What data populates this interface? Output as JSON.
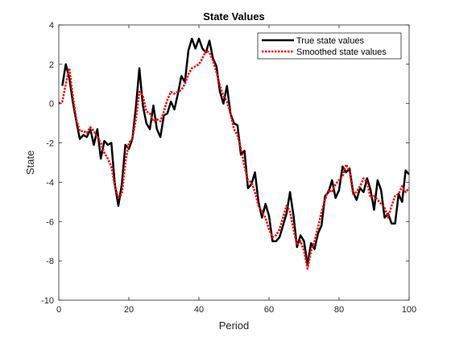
{
  "chart_data": {
    "type": "line",
    "title": "State Values",
    "xlabel": "Period",
    "ylabel": "State",
    "xlim": [
      0,
      100
    ],
    "ylim": [
      -10,
      4
    ],
    "xticks": [
      0,
      20,
      40,
      60,
      80,
      100
    ],
    "yticks": [
      -10,
      -8,
      -6,
      -4,
      -2,
      0,
      2,
      4
    ],
    "grid": false,
    "legend_position": "top-right",
    "series": [
      {
        "name": "True state values",
        "color": "#000000",
        "style": "solid",
        "x": [
          1,
          2,
          3,
          4,
          5,
          6,
          7,
          8,
          9,
          10,
          11,
          12,
          13,
          14,
          15,
          16,
          17,
          18,
          19,
          20,
          21,
          22,
          23,
          24,
          25,
          26,
          27,
          28,
          29,
          30,
          31,
          32,
          33,
          34,
          35,
          36,
          37,
          38,
          39,
          40,
          41,
          42,
          43,
          44,
          45,
          46,
          47,
          48,
          49,
          50,
          51,
          52,
          53,
          54,
          55,
          56,
          57,
          58,
          59,
          60,
          61,
          62,
          63,
          64,
          65,
          66,
          67,
          68,
          69,
          70,
          71,
          72,
          73,
          74,
          75,
          76,
          77,
          78,
          79,
          80,
          81,
          82,
          83,
          84,
          85,
          86,
          87,
          88,
          89,
          90,
          91,
          92,
          93,
          94,
          95,
          96,
          97,
          98,
          99,
          100
        ],
        "values": [
          0.9,
          2.0,
          1.3,
          0.1,
          -0.9,
          -1.8,
          -1.6,
          -1.7,
          -1.3,
          -2.1,
          -1.3,
          -2.8,
          -1.9,
          -2.1,
          -2.0,
          -4.1,
          -5.2,
          -4.1,
          -2.1,
          -2.3,
          -1.8,
          -0.2,
          1.8,
          -0.1,
          -1.0,
          -1.3,
          -0.1,
          -1.3,
          -1.7,
          -0.6,
          -0.5,
          0.1,
          -0.3,
          0.5,
          1.4,
          1.1,
          2.7,
          3.3,
          2.8,
          3.3,
          2.8,
          2.6,
          3.2,
          2.3,
          1.9,
          0.6,
          0.0,
          0.9,
          -0.5,
          -1.0,
          -1.1,
          -2.6,
          -2.4,
          -4.3,
          -4.1,
          -3.5,
          -5.0,
          -5.8,
          -5.1,
          -5.7,
          -7.0,
          -7.0,
          -6.8,
          -6.2,
          -5.6,
          -4.5,
          -5.7,
          -7.3,
          -6.7,
          -7.0,
          -8.2,
          -7.1,
          -7.4,
          -6.6,
          -6.2,
          -4.7,
          -4.5,
          -3.9,
          -4.8,
          -4.4,
          -3.2,
          -3.5,
          -3.3,
          -4.5,
          -4.9,
          -4.3,
          -4.5,
          -3.8,
          -4.4,
          -5.4,
          -3.9,
          -4.4,
          -5.8,
          -5.6,
          -6.1,
          -6.1,
          -4.6,
          -5.0,
          -3.4,
          -3.6
        ]
      },
      {
        "name": "Smoothed state values",
        "color": "#ff0000",
        "style": "dotted",
        "x": [
          0,
          1,
          2,
          3,
          4,
          5,
          6,
          7,
          8,
          9,
          10,
          11,
          12,
          13,
          14,
          15,
          16,
          17,
          18,
          19,
          20,
          21,
          22,
          23,
          24,
          25,
          26,
          27,
          28,
          29,
          30,
          31,
          32,
          33,
          34,
          35,
          36,
          37,
          38,
          39,
          40,
          41,
          42,
          43,
          44,
          45,
          46,
          47,
          48,
          49,
          50,
          51,
          52,
          53,
          54,
          55,
          56,
          57,
          58,
          59,
          60,
          61,
          62,
          63,
          64,
          65,
          66,
          67,
          68,
          69,
          70,
          71,
          72,
          73,
          74,
          75,
          76,
          77,
          78,
          79,
          80,
          81,
          82,
          83,
          84,
          85,
          86,
          87,
          88,
          89,
          90,
          91,
          92,
          93,
          94,
          95,
          96,
          97,
          98,
          99,
          100
        ],
        "values": [
          0.0,
          0.1,
          1.0,
          1.8,
          0.4,
          -0.8,
          -1.4,
          -1.4,
          -1.5,
          -1.2,
          -1.4,
          -1.7,
          -2.0,
          -2.5,
          -2.8,
          -3.2,
          -4.2,
          -4.8,
          -4.6,
          -3.0,
          -2.0,
          -1.8,
          -0.8,
          0.6,
          0.4,
          -0.4,
          -0.5,
          -0.9,
          -0.8,
          -0.9,
          -0.4,
          0.2,
          0.6,
          0.5,
          0.6,
          0.7,
          1.0,
          1.5,
          1.8,
          1.9,
          2.0,
          2.3,
          2.7,
          2.6,
          2.2,
          1.6,
          0.9,
          0.4,
          0.1,
          -0.5,
          -1.3,
          -1.6,
          -2.3,
          -3.2,
          -3.9,
          -4.0,
          -4.5,
          -5.2,
          -5.5,
          -5.8,
          -6.4,
          -6.8,
          -6.7,
          -6.4,
          -5.8,
          -5.2,
          -5.5,
          -6.4,
          -7.2,
          -7.0,
          -7.5,
          -8.4,
          -7.5,
          -7.0,
          -6.3,
          -5.5,
          -4.9,
          -4.4,
          -4.5,
          -4.1,
          -3.9,
          -3.7,
          -3.1,
          -3.4,
          -4.6,
          -4.5,
          -4.2,
          -3.8,
          -4.0,
          -4.8,
          -4.7,
          -4.9,
          -5.1,
          -5.3,
          -5.8,
          -5.2,
          -4.7,
          -4.6,
          -4.2,
          -4.5,
          -4.3
        ]
      }
    ]
  }
}
